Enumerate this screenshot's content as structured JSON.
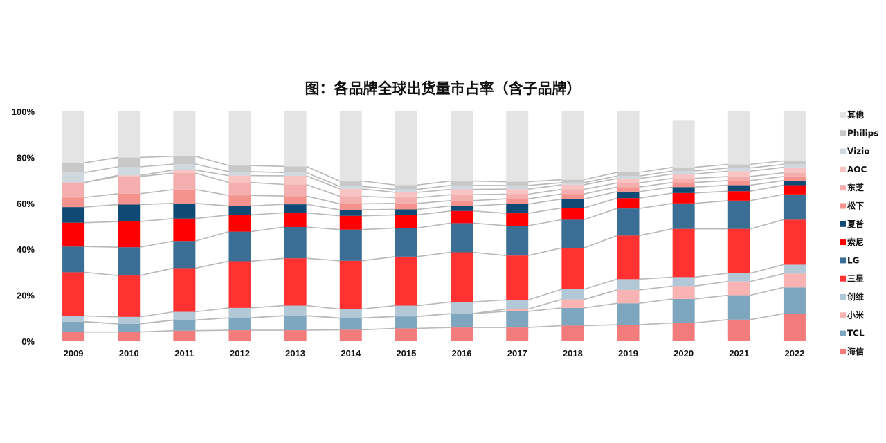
{
  "chart_data": {
    "type": "bar",
    "stacked": true,
    "title": "图：各品牌全球出货量市占率（含子品牌）",
    "xlabel": "",
    "ylabel": "",
    "ylim": [
      0,
      100
    ],
    "y_ticks": [
      "0%",
      "20%",
      "40%",
      "60%",
      "80%",
      "100%"
    ],
    "categories": [
      "2009",
      "2010",
      "2011",
      "2012",
      "2013",
      "2014",
      "2015",
      "2016",
      "2017",
      "2018",
      "2019",
      "2020",
      "2021",
      "2022"
    ],
    "series": [
      {
        "name": "海信",
        "color": "#f27c7c",
        "values": [
          4.0,
          4.0,
          4.6,
          4.8,
          4.8,
          5.0,
          5.6,
          6.0,
          6.0,
          6.8,
          7.2,
          8.0,
          9.4,
          12.0
        ]
      },
      {
        "name": "TCL",
        "color": "#7fa6bf",
        "values": [
          4.5,
          3.6,
          4.6,
          5.4,
          6.3,
          5.1,
          5.2,
          6.0,
          7.0,
          7.7,
          9.3,
          10.4,
          10.6,
          11.4
        ]
      },
      {
        "name": "小米",
        "color": "#f9b3b3",
        "values": [
          0,
          0,
          0,
          0,
          0,
          0,
          0,
          0,
          1.0,
          3.7,
          5.8,
          5.6,
          6.0,
          6.0
        ]
      },
      {
        "name": "创维",
        "color": "#b3c8d6",
        "values": [
          2.5,
          3.0,
          3.6,
          4.3,
          4.4,
          3.9,
          4.7,
          5.1,
          4.0,
          4.4,
          4.7,
          3.9,
          3.6,
          3.9
        ]
      },
      {
        "name": "三星",
        "color": "#ff3131",
        "values": [
          19.0,
          18.0,
          19.0,
          20.3,
          20.6,
          21.0,
          21.3,
          21.6,
          19.3,
          18.0,
          19.0,
          21.0,
          19.3,
          19.6
        ]
      },
      {
        "name": "LG",
        "color": "#3b6e95",
        "values": [
          11.2,
          12.3,
          11.8,
          12.9,
          13.6,
          13.6,
          12.5,
          12.7,
          13.0,
          12.3,
          11.8,
          11.1,
          12.3,
          11.0
        ]
      },
      {
        "name": "索尼",
        "color": "#ff0000",
        "values": [
          10.4,
          11.2,
          9.8,
          7.3,
          6.2,
          6.0,
          5.7,
          5.3,
          5.4,
          5.1,
          4.5,
          4.5,
          4.1,
          4.0
        ]
      },
      {
        "name": "夏普",
        "color": "#0e4a73",
        "values": [
          6.8,
          7.4,
          6.6,
          3.9,
          3.7,
          2.6,
          2.4,
          2.2,
          4.0,
          3.9,
          2.8,
          2.6,
          2.6,
          2.0
        ]
      },
      {
        "name": "松下",
        "color": "#f4938e",
        "values": [
          4.2,
          4.7,
          6.0,
          4.6,
          3.6,
          2.6,
          2.6,
          2.3,
          2.3,
          2.2,
          2.0,
          2.0,
          2.0,
          1.8
        ]
      },
      {
        "name": "东芝",
        "color": "#f4aeae",
        "values": [
          6.5,
          7.5,
          7.2,
          5.6,
          5.0,
          3.3,
          2.5,
          2.6,
          2.0,
          2.0,
          1.8,
          1.8,
          1.8,
          1.6
        ]
      },
      {
        "name": "AOC",
        "color": "#f8c3c3",
        "values": [
          0,
          0.5,
          1.3,
          3.0,
          3.8,
          3.2,
          2.3,
          2.3,
          2.2,
          2.0,
          1.9,
          1.9,
          2.3,
          2.4
        ]
      },
      {
        "name": "Vizio",
        "color": "#cfd8df",
        "values": [
          4.3,
          3.7,
          2.6,
          1.7,
          1.4,
          1.1,
          1.3,
          1.7,
          1.6,
          0.9,
          1.1,
          1.3,
          1.4,
          1.3
        ]
      },
      {
        "name": "Philips",
        "color": "#c8c8c8",
        "values": [
          4.3,
          4.1,
          3.4,
          2.7,
          2.7,
          2.3,
          1.9,
          1.9,
          1.6,
          1.3,
          1.6,
          1.6,
          1.6,
          1.5
        ]
      },
      {
        "name": "其他",
        "color": "#e4e4e4",
        "values": [
          22.3,
          20.0,
          19.5,
          23.5,
          24.0,
          30.3,
          32.0,
          30.3,
          30.6,
          29.7,
          26.5,
          20.3,
          23.0,
          21.5
        ]
      }
    ],
    "legend_position": "right",
    "grid": true
  }
}
